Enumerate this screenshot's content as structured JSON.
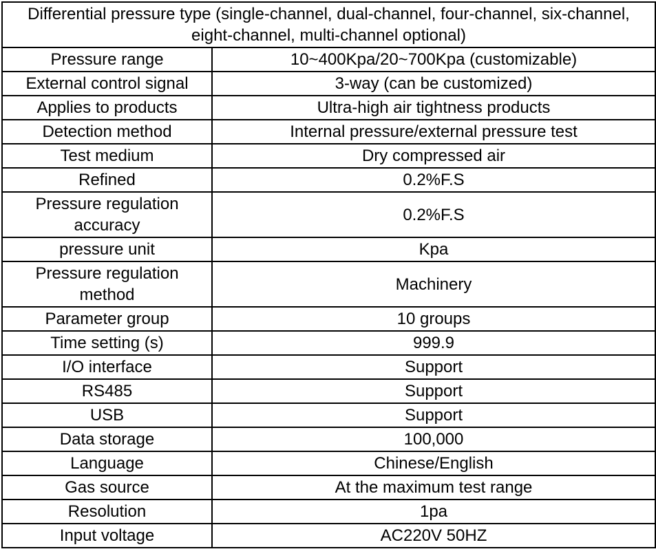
{
  "page": {
    "background_color": "#ffffff",
    "border_color": "#000000",
    "text_color": "#000000"
  },
  "table": {
    "header": "Differential pressure type (single-channel, dual-channel, four-channel, six-channel, eight-channel, multi-channel optional)",
    "rows": [
      {
        "label": "Pressure range",
        "value": "10~400Kpa/20~700Kpa (customizable)"
      },
      {
        "label": "External control signal",
        "value": "3-way (can be customized)"
      },
      {
        "label": "Applies to products",
        "value": "Ultra-high air tightness products"
      },
      {
        "label": "Detection method",
        "value": "Internal pressure/external pressure test"
      },
      {
        "label": "Test medium",
        "value": "Dry compressed air"
      },
      {
        "label": "Refined",
        "value": "0.2%F.S"
      },
      {
        "label": "Pressure regulation accuracy",
        "value": "0.2%F.S"
      },
      {
        "label": "pressure unit",
        "value": "Kpa"
      },
      {
        "label": "Pressure regulation method",
        "value": "Machinery"
      },
      {
        "label": "Parameter group",
        "value": "10 groups"
      },
      {
        "label": "Time setting (s)",
        "value": "999.9"
      },
      {
        "label": "I/O interface",
        "value": "Support"
      },
      {
        "label": "RS485",
        "value": "Support"
      },
      {
        "label": "USB",
        "value": "Support"
      },
      {
        "label": "Data storage",
        "value": "100,000"
      },
      {
        "label": "Language",
        "value": "Chinese/English"
      },
      {
        "label": "Gas source",
        "value": "At the maximum test range"
      },
      {
        "label": "Resolution",
        "value": "1pa"
      },
      {
        "label": "Input voltage",
        "value": "AC220V 50HZ"
      }
    ]
  }
}
